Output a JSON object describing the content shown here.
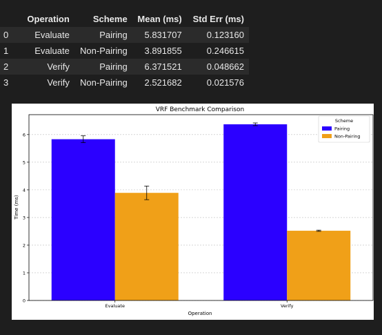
{
  "table": {
    "columns": [
      "Operation",
      "Scheme",
      "Mean (ms)",
      "Std Err (ms)"
    ],
    "rows": [
      {
        "index": "0",
        "operation": "Evaluate",
        "scheme": "Pairing",
        "mean": "5.831707",
        "stderr": "0.123160"
      },
      {
        "index": "1",
        "operation": "Evaluate",
        "scheme": "Non-Pairing",
        "mean": "3.891855",
        "stderr": "0.246615"
      },
      {
        "index": "2",
        "operation": "Verify",
        "scheme": "Pairing",
        "mean": "6.371521",
        "stderr": "0.048662"
      },
      {
        "index": "3",
        "operation": "Verify",
        "scheme": "Non-Pairing",
        "mean": "2.521682",
        "stderr": "0.021576"
      }
    ]
  },
  "chart_data": {
    "type": "bar",
    "title": "VRF Benchmark Comparison",
    "xlabel": "Operation",
    "ylabel": "Time (ms)",
    "categories": [
      "Evaluate",
      "Verify"
    ],
    "series": [
      {
        "name": "Pairing",
        "color": "#2b00ff",
        "values": [
          5.831707,
          6.371521
        ],
        "errors": [
          0.12316,
          0.048662
        ]
      },
      {
        "name": "Non-Pairing",
        "color": "#f0a018",
        "values": [
          3.891855,
          2.521682
        ],
        "errors": [
          0.246615,
          0.021576
        ]
      }
    ],
    "ylim": [
      0,
      6.72
    ],
    "yticks": [
      0,
      1,
      2,
      3,
      4,
      5,
      6
    ],
    "grid": "horizontal-dashed",
    "legend": {
      "title": "Scheme",
      "placement": "top-right"
    }
  }
}
